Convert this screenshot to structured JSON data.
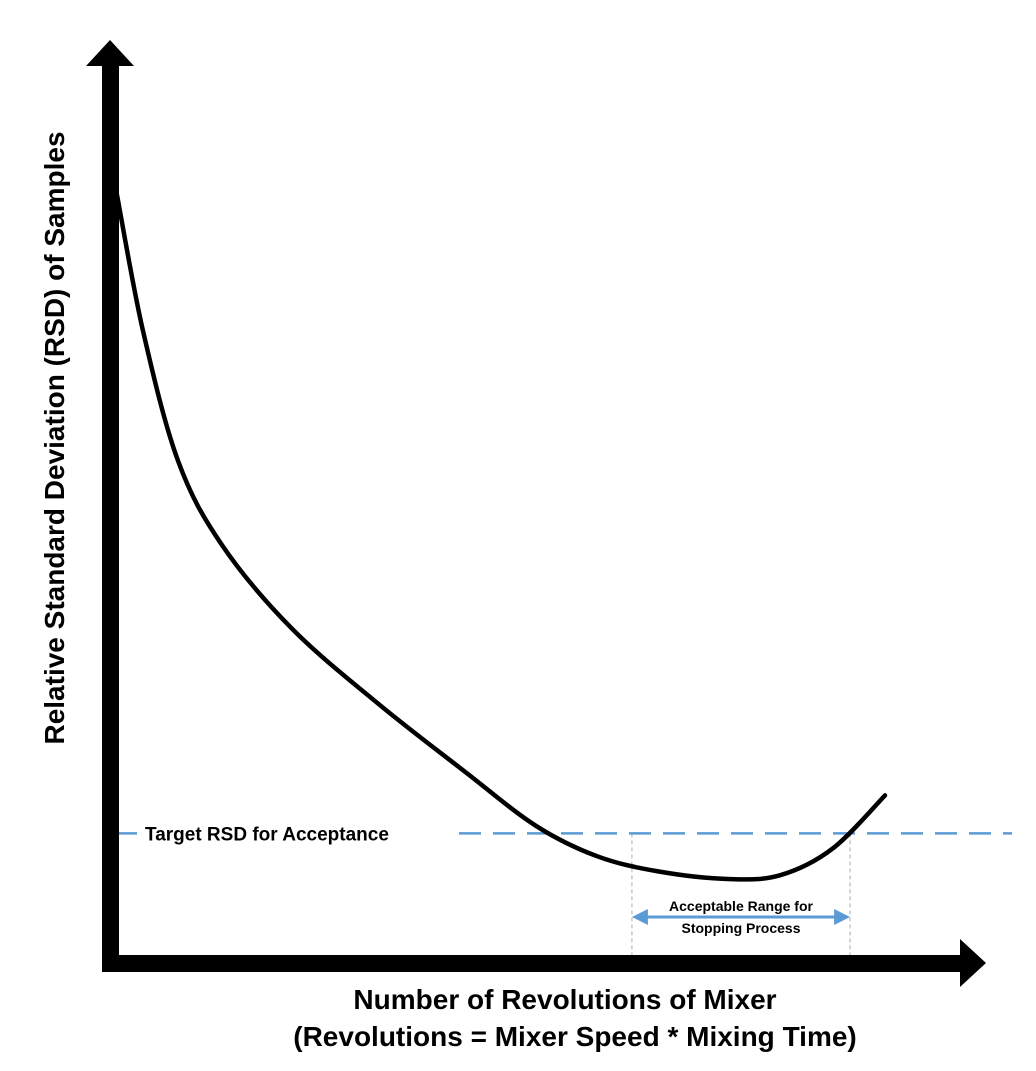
{
  "chart_data": {
    "type": "line",
    "title": "",
    "ylabel": "Relative Standard Deviation (RSD) of Samples",
    "xlabel_line1": "Number of Revolutions of Mixer",
    "xlabel_line2": "(Revolutions = Mixer Speed * Mixing Time)",
    "ticks": "none",
    "grid": false,
    "series": [
      {
        "values_description_note": "",
        "points": [
          {
            "x": 0,
            "y": 100
          },
          {
            "x": 3,
            "y": 82
          },
          {
            "x": 7,
            "y": 65
          },
          {
            "x": 12,
            "y": 54
          },
          {
            "x": 20,
            "y": 43
          },
          {
            "x": 30,
            "y": 33
          },
          {
            "x": 40,
            "y": 24
          },
          {
            "x": 48,
            "y": 17
          },
          {
            "x": 55,
            "y": 13
          },
          {
            "x": 62,
            "y": 11
          },
          {
            "x": 70,
            "y": 10
          },
          {
            "x": 76,
            "y": 10.5
          },
          {
            "x": 82,
            "y": 14
          },
          {
            "x": 88,
            "y": 21
          }
        ]
      }
    ],
    "target_line": {
      "label": "Target RSD for Acceptance",
      "y": 16,
      "color": "#5b9bd5"
    },
    "acceptable_range": {
      "label_line1": "Acceptable Range for",
      "label_line2": "Stopping Process",
      "x_start": 59,
      "x_end": 84,
      "color": "#5b9bd5"
    },
    "colors": {
      "axis": "#000000",
      "curve": "#000000",
      "dotted": "#c8c8c8",
      "accent": "#5b9bd5"
    }
  }
}
